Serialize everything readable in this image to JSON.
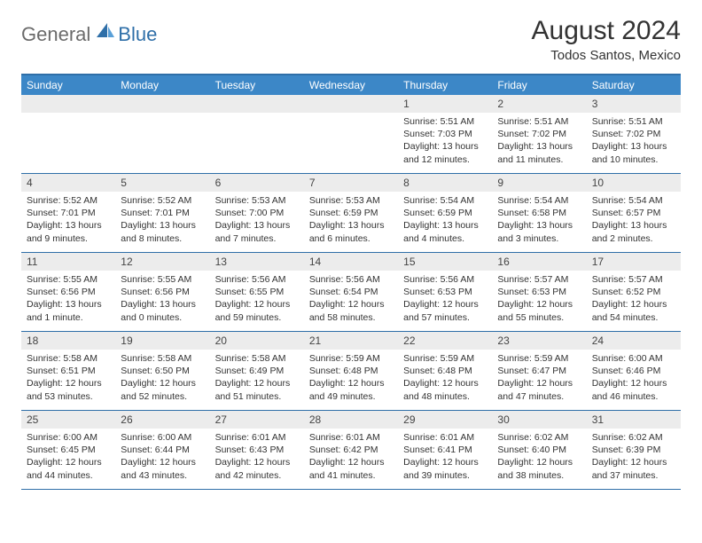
{
  "brand": {
    "part1": "General",
    "part2": "Blue"
  },
  "title": "August 2024",
  "subtitle": "Todos Santos, Mexico",
  "colors": {
    "headerBar": "#3c87c7",
    "accentLine": "#2f6fa8",
    "dayBg": "#ececec",
    "text": "#333333",
    "logoGray": "#6b6b6b",
    "logoBlue": "#2f6fa8",
    "background": "#ffffff"
  },
  "dow": [
    "Sunday",
    "Monday",
    "Tuesday",
    "Wednesday",
    "Thursday",
    "Friday",
    "Saturday"
  ],
  "weeks": [
    [
      null,
      null,
      null,
      null,
      {
        "n": "1",
        "sr": "5:51 AM",
        "ss": "7:03 PM",
        "dl": "13 hours and 12 minutes."
      },
      {
        "n": "2",
        "sr": "5:51 AM",
        "ss": "7:02 PM",
        "dl": "13 hours and 11 minutes."
      },
      {
        "n": "3",
        "sr": "5:51 AM",
        "ss": "7:02 PM",
        "dl": "13 hours and 10 minutes."
      }
    ],
    [
      {
        "n": "4",
        "sr": "5:52 AM",
        "ss": "7:01 PM",
        "dl": "13 hours and 9 minutes."
      },
      {
        "n": "5",
        "sr": "5:52 AM",
        "ss": "7:01 PM",
        "dl": "13 hours and 8 minutes."
      },
      {
        "n": "6",
        "sr": "5:53 AM",
        "ss": "7:00 PM",
        "dl": "13 hours and 7 minutes."
      },
      {
        "n": "7",
        "sr": "5:53 AM",
        "ss": "6:59 PM",
        "dl": "13 hours and 6 minutes."
      },
      {
        "n": "8",
        "sr": "5:54 AM",
        "ss": "6:59 PM",
        "dl": "13 hours and 4 minutes."
      },
      {
        "n": "9",
        "sr": "5:54 AM",
        "ss": "6:58 PM",
        "dl": "13 hours and 3 minutes."
      },
      {
        "n": "10",
        "sr": "5:54 AM",
        "ss": "6:57 PM",
        "dl": "13 hours and 2 minutes."
      }
    ],
    [
      {
        "n": "11",
        "sr": "5:55 AM",
        "ss": "6:56 PM",
        "dl": "13 hours and 1 minute."
      },
      {
        "n": "12",
        "sr": "5:55 AM",
        "ss": "6:56 PM",
        "dl": "13 hours and 0 minutes."
      },
      {
        "n": "13",
        "sr": "5:56 AM",
        "ss": "6:55 PM",
        "dl": "12 hours and 59 minutes."
      },
      {
        "n": "14",
        "sr": "5:56 AM",
        "ss": "6:54 PM",
        "dl": "12 hours and 58 minutes."
      },
      {
        "n": "15",
        "sr": "5:56 AM",
        "ss": "6:53 PM",
        "dl": "12 hours and 57 minutes."
      },
      {
        "n": "16",
        "sr": "5:57 AM",
        "ss": "6:53 PM",
        "dl": "12 hours and 55 minutes."
      },
      {
        "n": "17",
        "sr": "5:57 AM",
        "ss": "6:52 PM",
        "dl": "12 hours and 54 minutes."
      }
    ],
    [
      {
        "n": "18",
        "sr": "5:58 AM",
        "ss": "6:51 PM",
        "dl": "12 hours and 53 minutes."
      },
      {
        "n": "19",
        "sr": "5:58 AM",
        "ss": "6:50 PM",
        "dl": "12 hours and 52 minutes."
      },
      {
        "n": "20",
        "sr": "5:58 AM",
        "ss": "6:49 PM",
        "dl": "12 hours and 51 minutes."
      },
      {
        "n": "21",
        "sr": "5:59 AM",
        "ss": "6:48 PM",
        "dl": "12 hours and 49 minutes."
      },
      {
        "n": "22",
        "sr": "5:59 AM",
        "ss": "6:48 PM",
        "dl": "12 hours and 48 minutes."
      },
      {
        "n": "23",
        "sr": "5:59 AM",
        "ss": "6:47 PM",
        "dl": "12 hours and 47 minutes."
      },
      {
        "n": "24",
        "sr": "6:00 AM",
        "ss": "6:46 PM",
        "dl": "12 hours and 46 minutes."
      }
    ],
    [
      {
        "n": "25",
        "sr": "6:00 AM",
        "ss": "6:45 PM",
        "dl": "12 hours and 44 minutes."
      },
      {
        "n": "26",
        "sr": "6:00 AM",
        "ss": "6:44 PM",
        "dl": "12 hours and 43 minutes."
      },
      {
        "n": "27",
        "sr": "6:01 AM",
        "ss": "6:43 PM",
        "dl": "12 hours and 42 minutes."
      },
      {
        "n": "28",
        "sr": "6:01 AM",
        "ss": "6:42 PM",
        "dl": "12 hours and 41 minutes."
      },
      {
        "n": "29",
        "sr": "6:01 AM",
        "ss": "6:41 PM",
        "dl": "12 hours and 39 minutes."
      },
      {
        "n": "30",
        "sr": "6:02 AM",
        "ss": "6:40 PM",
        "dl": "12 hours and 38 minutes."
      },
      {
        "n": "31",
        "sr": "6:02 AM",
        "ss": "6:39 PM",
        "dl": "12 hours and 37 minutes."
      }
    ]
  ],
  "labels": {
    "sunrise": "Sunrise:",
    "sunset": "Sunset:",
    "daylight": "Daylight:"
  }
}
